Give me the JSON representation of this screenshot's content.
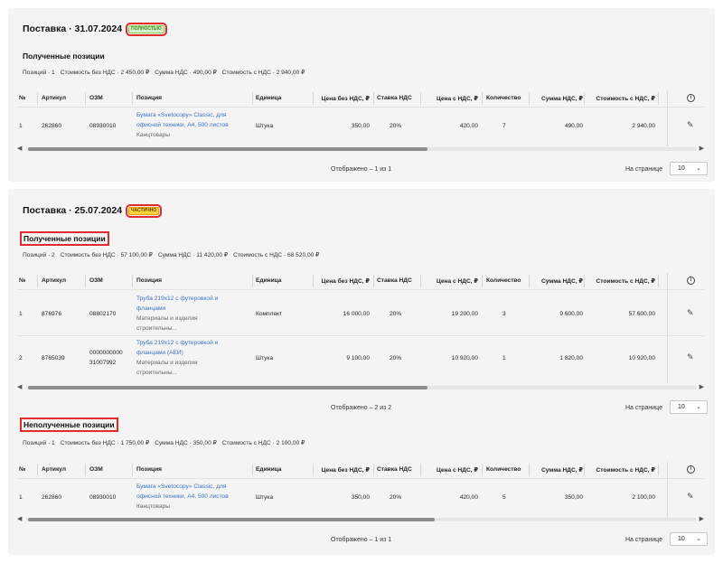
{
  "columns": [
    "№",
    "Артикул",
    "ОЗМ",
    "Позиция",
    "Единица",
    "Цена без НДС, ₽",
    "Ставка НДС",
    "Цена с НДС, ₽",
    "Количество",
    "Сумма НДС, ₽",
    "Стоимость с НДС, ₽"
  ],
  "per_page_label": "На странице",
  "per_page_value": "10",
  "deliveries": [
    {
      "title": "Поставка · 31.07.2024",
      "badge": "ПОЛНОСТЬЮ",
      "sections": [
        {
          "title": "Полученные позиции",
          "summary": [
            "Позиций · 1",
            "Стоимость без НДС · 2 450,00 ₽",
            "Сумма НДС · 490,00 ₽",
            "Стоимость с НДС · 2 940,00 ₽"
          ],
          "rows": [
            {
              "n": "1",
              "article": "262860",
              "ozm": "08930010",
              "pos_name_1": "Бумага «Svetocopy» Classic, для",
              "pos_name_2": "офисной техники, А4, 500 листов",
              "category_1": "Канцтовары",
              "unit": "Штука",
              "price": "350,00",
              "vat_rate": "20%",
              "price_vat": "420,00",
              "qty": "7",
              "vat_sum": "490,00",
              "total": "2 940,00"
            }
          ],
          "shown": "Отображено – 1 из 1"
        }
      ]
    },
    {
      "title": "Поставка · 25.07.2024",
      "badge": "ЧАСТИЧНО",
      "sections": [
        {
          "title": "Полученные позиции",
          "summary": [
            "Позиций · 2",
            "Стоимость без НДС · 57 100,00 ₽",
            "Сумма НДС · 11 420,00 ₽",
            "Стоимость с НДС · 68 520,00 ₽"
          ],
          "rows": [
            {
              "n": "1",
              "article": "876976",
              "ozm": "08802170",
              "pos_name_1": "Труба 219х12 с футеровкой и",
              "pos_name_2": "фланцами",
              "category_1": "Материалы и изделия",
              "category_2": "строительны...",
              "unit": "Комплект",
              "price": "16 000,00",
              "vat_rate": "20%",
              "price_vat": "19 200,00",
              "qty": "3",
              "vat_sum": "9 600,00",
              "total": "57 600,00"
            },
            {
              "n": "2",
              "article": "8765039",
              "ozm_1": "0000000000",
              "ozm_2": "31007992",
              "pos_name_1": "Труба 219х12 с футеровкой и",
              "pos_name_2": "фланцами (АЕИ)",
              "category_1": "Материалы и изделия",
              "category_2": "строительны...",
              "unit": "Штука",
              "price": "9 100,00",
              "vat_rate": "20%",
              "price_vat": "10 920,00",
              "qty": "1",
              "vat_sum": "1 820,00",
              "total": "10 920,00"
            }
          ],
          "shown": "Отображено – 2 из 2"
        },
        {
          "title": "Неполученные позиции",
          "summary": [
            "Позиций · 1",
            "Стоимость без НДС · 1 750,00 ₽",
            "Сумма НДС · 350,00 ₽",
            "Стоимость с НДС · 2 100,00 ₽"
          ],
          "rows": [
            {
              "n": "1",
              "article": "262860",
              "ozm": "08930010",
              "pos_name_1": "Бумага «Svetocopy» Classic, для",
              "pos_name_2": "офисной техники, А4, 500 листов",
              "category_1": "Канцтовары",
              "unit": "Штука",
              "price": "350,00",
              "vat_rate": "20%",
              "price_vat": "420,00",
              "qty": "5",
              "vat_sum": "350,00",
              "total": "2 100,00"
            }
          ],
          "shown": "Отображено – 1 из 1"
        }
      ]
    }
  ]
}
